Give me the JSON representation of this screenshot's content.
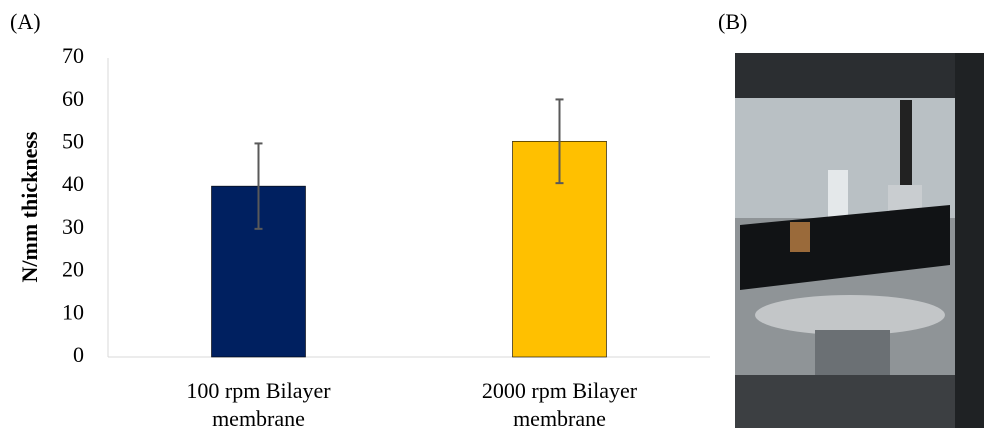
{
  "panel_labels": [
    "(A)",
    "(B)"
  ],
  "chart_data": {
    "type": "bar",
    "ylabel": "N/mm thickness",
    "categories": [
      "100 rpm Bilayer membrane",
      "2000 rpm Bilayer membrane"
    ],
    "values": [
      40,
      50.5
    ],
    "errors": [
      10,
      9.8
    ],
    "colors": [
      "#002060",
      "#ffc000"
    ],
    "error_color": "#595959",
    "ylim": [
      0,
      70
    ],
    "yticks": [
      0,
      10,
      20,
      30,
      40,
      50,
      60,
      70
    ],
    "grid": false
  }
}
